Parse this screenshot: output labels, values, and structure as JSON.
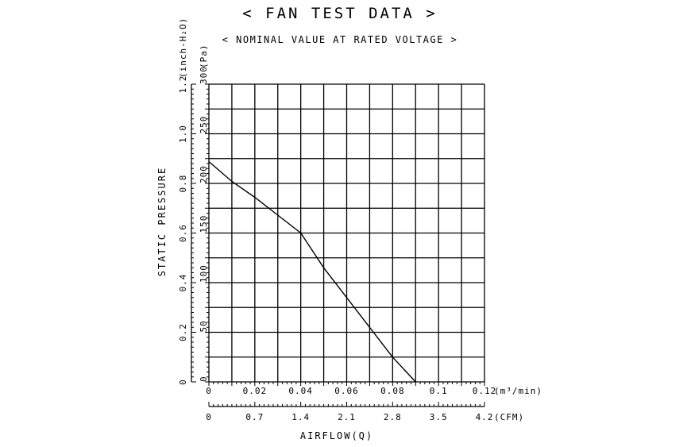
{
  "chart_data": {
    "type": "line",
    "title": "< FAN TEST DATA >",
    "subtitle": "< NOMINAL VALUE AT RATED VOLTAGE >",
    "xlabel": "AIRFLOW(Q)",
    "ylabel": "STATIC PRESSURE",
    "x_axis_primary": {
      "unit": "(m³/min)",
      "range": [
        0,
        0.12
      ],
      "ticks": [
        "0",
        "0.02",
        "0.04",
        "0.06",
        "0.08",
        "0.1",
        "0.12"
      ],
      "tick_values": [
        0,
        0.02,
        0.04,
        0.06,
        0.08,
        0.1,
        0.12
      ]
    },
    "x_axis_secondary": {
      "unit": "(CFM)",
      "range": [
        0,
        4.2
      ],
      "ticks": [
        "0",
        "0.7",
        "1.4",
        "2.1",
        "2.8",
        "3.5",
        "4.2"
      ],
      "tick_values": [
        0,
        0.7,
        1.4,
        2.1,
        2.8,
        3.5,
        4.2
      ]
    },
    "y_axis_primary": {
      "unit": "(Pa)",
      "range": [
        0,
        300
      ],
      "ticks": [
        "0",
        "50",
        "100",
        "150",
        "200",
        "250",
        "300"
      ],
      "tick_values": [
        0,
        50,
        100,
        150,
        200,
        250,
        300
      ]
    },
    "y_axis_secondary": {
      "unit": "(inch-H₂O)",
      "range": [
        0,
        1.2
      ],
      "ticks": [
        "0",
        "0.2",
        "0.4",
        "0.6",
        "0.8",
        "1.0",
        "1.2"
      ],
      "tick_values": [
        0,
        0.2,
        0.4,
        0.6,
        0.8,
        1.0,
        1.2
      ]
    },
    "grid": true,
    "series": [
      {
        "x": [
          0,
          0.01,
          0.02,
          0.03,
          0.04,
          0.05,
          0.06,
          0.07,
          0.08,
          0.09
        ],
        "y": [
          222,
          202,
          186,
          168,
          150,
          115,
          85,
          55,
          25,
          0
        ]
      }
    ]
  }
}
